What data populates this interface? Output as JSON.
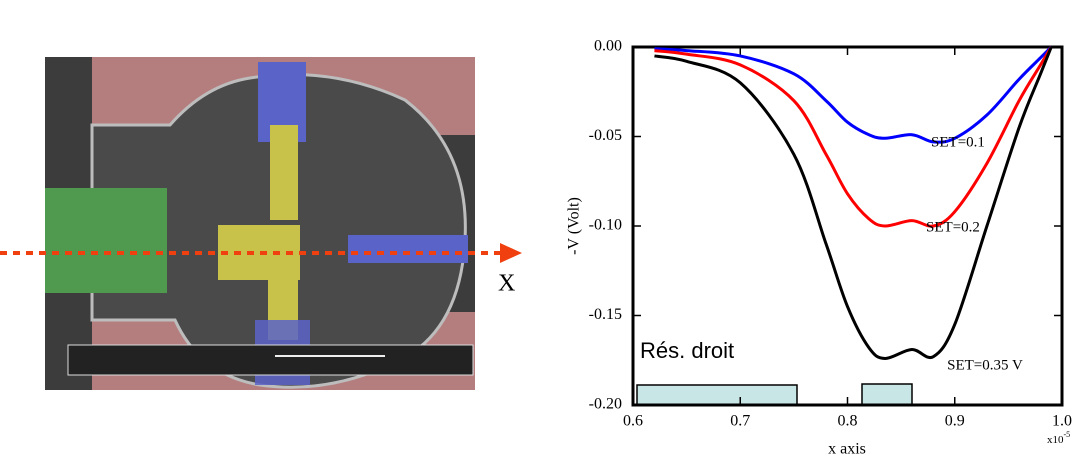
{
  "chart_data": {
    "type": "line",
    "xlabel": "x axis",
    "ylabel": "-V (Volt)",
    "x_multiplier": "x10",
    "x_multiplier_exponent": "-5",
    "x": [
      0.62,
      0.65,
      0.7,
      0.75,
      0.78,
      0.8,
      0.82,
      0.835,
      0.86,
      0.88,
      0.9,
      0.93,
      0.96,
      0.98,
      0.99
    ],
    "series": [
      {
        "name": "SET=0.1",
        "color": "#0000ff",
        "values": [
          -0.001,
          -0.002,
          -0.005,
          -0.015,
          -0.03,
          -0.042,
          -0.049,
          -0.051,
          -0.049,
          -0.053,
          -0.051,
          -0.038,
          -0.018,
          -0.006,
          0
        ]
      },
      {
        "name": "SET=0.2",
        "color": "#ff0000",
        "values": [
          -0.002,
          -0.004,
          -0.01,
          -0.03,
          -0.06,
          -0.082,
          -0.096,
          -0.1,
          -0.097,
          -0.1,
          -0.092,
          -0.065,
          -0.03,
          -0.01,
          0
        ]
      },
      {
        "name": "SET=0.35 V",
        "color": "#000000",
        "values": [
          -0.005,
          -0.008,
          -0.02,
          -0.06,
          -0.11,
          -0.145,
          -0.168,
          -0.174,
          -0.169,
          -0.173,
          -0.155,
          -0.1,
          -0.045,
          -0.015,
          0
        ]
      }
    ],
    "xlim": [
      0.6,
      1.0
    ],
    "xticks": [
      0.6,
      0.7,
      0.8,
      0.9,
      {
        "value": 1.0,
        "label": "1.0"
      }
    ],
    "ylim": [
      -0.2,
      0
    ],
    "yticks": [
      {
        "value": 0,
        "label": "0.00"
      },
      -0.05,
      {
        "value": -0.1,
        "label": "-0.10"
      },
      -0.15,
      {
        "value": -0.2,
        "label": "-0.20"
      }
    ],
    "annotations": [
      "Rés. droit",
      "X"
    ]
  }
}
